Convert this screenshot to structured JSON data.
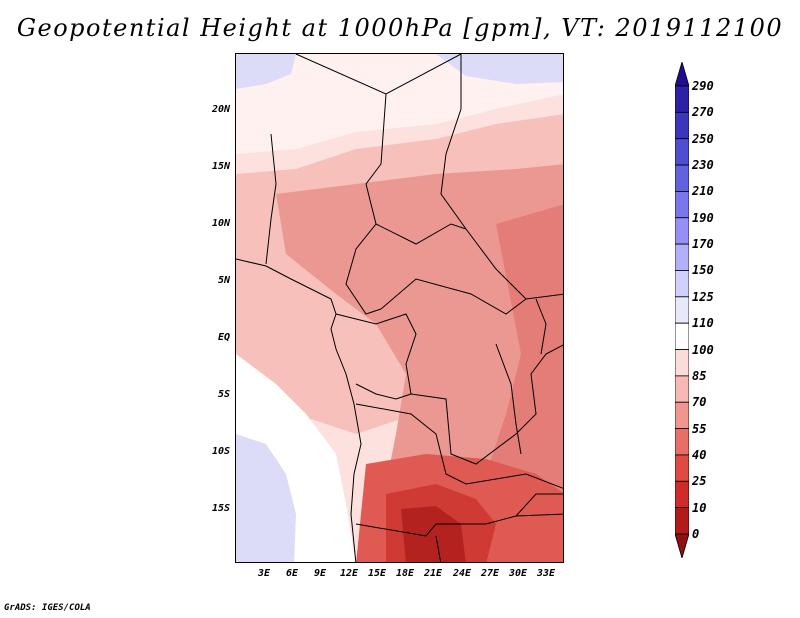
{
  "title": "Geopotential Height at 1000hPa [gpm], VT: 2019112100",
  "credit": "GrADS: IGES/COLA",
  "map": {
    "lat_labels": [
      "20N",
      "15N",
      "10N",
      "5N",
      "EQ",
      "5S",
      "10S",
      "15S"
    ],
    "lon_labels": [
      "3E",
      "6E",
      "9E",
      "12E",
      "15E",
      "18E",
      "21E",
      "24E",
      "27E",
      "30E",
      "33E"
    ]
  },
  "colorbar": {
    "levels": [
      "290",
      "270",
      "250",
      "230",
      "210",
      "190",
      "170",
      "150",
      "125",
      "110",
      "100",
      "85",
      "70",
      "55",
      "40",
      "25",
      "10",
      "0"
    ],
    "colors": [
      "#240c90",
      "#2e21a8",
      "#3a37bd",
      "#4d4ed1",
      "#6262e0",
      "#7977ec",
      "#968ff5",
      "#b2b0f9",
      "#d0d0fa",
      "#e8e8fb",
      "#ffffff",
      "#fcdcd8",
      "#f7b9b4",
      "#f1958f",
      "#e96e67",
      "#df4a43",
      "#cf2b2a",
      "#b31b1b",
      "#8e1010"
    ]
  }
}
